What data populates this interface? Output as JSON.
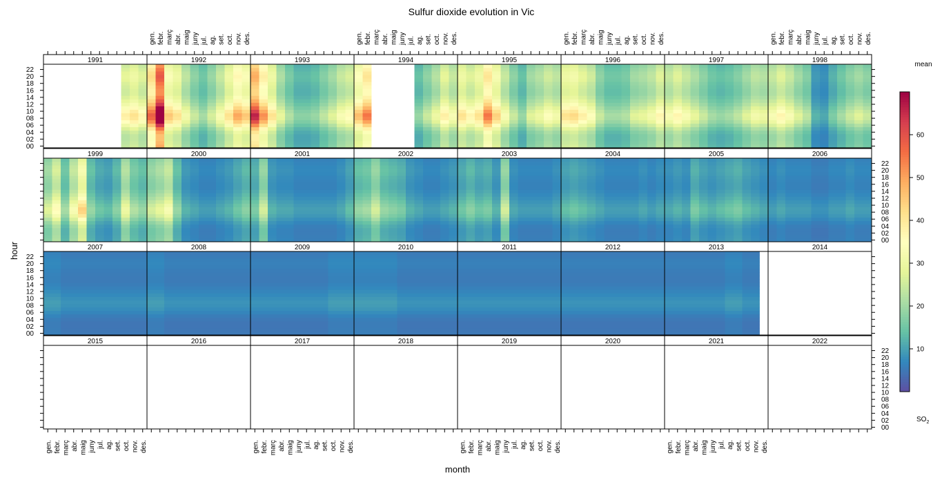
{
  "chart_data": {
    "type": "heatmap",
    "title": "Sulfur dioxide evolution in Vic",
    "xlabel": "month",
    "ylabel": "hour",
    "legend_title": "mean",
    "legend_label_main": "SO",
    "legend_label_sub": "2",
    "colorbar_range": [
      0,
      70
    ],
    "colorbar_ticks": [
      10,
      20,
      30,
      40,
      50,
      60
    ],
    "colormap": [
      "#5E4FA2",
      "#3288BD",
      "#66C2A5",
      "#ABDDA4",
      "#E6F598",
      "#FFFFBF",
      "#FEE08B",
      "#FDAE61",
      "#F46D43",
      "#D53E4F",
      "#9E0142"
    ],
    "months": [
      "gen.",
      "febr.",
      "març",
      "abr.",
      "maig",
      "juny",
      "jul.",
      "ag.",
      "set.",
      "oct.",
      "nov.",
      "des."
    ],
    "hour_ticks": [
      "00",
      "02",
      "04",
      "06",
      "08",
      "10",
      "12",
      "14",
      "16",
      "18",
      "20",
      "22"
    ],
    "panel_rows": [
      [
        "1991",
        "1992",
        "1993",
        "1994",
        "1995",
        "1996",
        "1997",
        "1998"
      ],
      [
        "1999",
        "2000",
        "2001",
        "2002",
        "2003",
        "2004",
        "2005",
        "2006"
      ],
      [
        "2007",
        "2008",
        "2009",
        "2010",
        "2011",
        "2012",
        "2013",
        "2014"
      ],
      [
        "2015",
        "2016",
        "2017",
        "2018",
        "2019",
        "2020",
        "2021",
        "2022"
      ]
    ],
    "monthly_mean": {
      "1991": [
        null,
        null,
        null,
        null,
        null,
        null,
        null,
        null,
        null,
        28,
        30,
        27
      ],
      "1992": [
        42,
        58,
        33,
        30,
        23,
        18,
        15,
        19,
        24,
        30,
        36,
        33
      ],
      "1993": [
        48,
        38,
        30,
        21,
        16,
        13,
        13,
        14,
        17,
        20,
        24,
        26
      ],
      "1994": [
        34,
        40,
        null,
        null,
        null,
        null,
        null,
        14,
        18,
        22,
        28,
        24
      ],
      "1995": [
        30,
        27,
        30,
        40,
        32,
        24,
        18,
        14,
        20,
        22,
        25,
        23
      ],
      "1996": [
        30,
        31,
        28,
        25,
        18,
        15,
        15,
        16,
        20,
        21,
        23,
        27
      ],
      "1997": [
        24,
        27,
        24,
        21,
        18,
        15,
        14,
        15,
        17,
        20,
        23,
        22
      ],
      "1998": [
        24,
        27,
        24,
        20,
        17,
        9,
        8,
        12,
        15,
        18,
        20,
        18
      ],
      "1999": [
        20,
        26,
        15,
        24,
        32,
        14,
        11,
        10,
        13,
        22,
        16,
        14
      ],
      "2000": [
        19,
        21,
        24,
        14,
        9,
        8,
        7,
        7,
        8,
        9,
        11,
        13
      ],
      "2001": [
        12,
        19,
        9,
        8,
        8,
        7,
        7,
        7,
        7,
        7,
        8,
        10
      ],
      "2002": [
        14,
        15,
        19,
        14,
        13,
        12,
        9,
        8,
        7,
        7,
        8,
        9
      ],
      "2003": [
        11,
        13,
        11,
        12,
        9,
        19,
        8,
        7,
        7,
        7,
        7,
        8
      ],
      "2004": [
        10,
        11,
        10,
        9,
        8,
        7,
        7,
        7,
        7,
        8,
        7,
        8
      ],
      "2005": [
        8,
        9,
        8,
        12,
        10,
        9,
        10,
        11,
        12,
        10,
        9,
        8
      ],
      "2006": [
        7,
        8,
        7,
        7,
        7,
        6,
        6,
        7,
        7,
        8,
        7,
        7
      ],
      "2007": [
        7,
        7,
        6,
        6,
        6,
        6,
        6,
        6,
        6,
        6,
        6,
        6
      ],
      "2008": [
        7,
        7,
        6,
        6,
        6,
        6,
        6,
        6,
        6,
        6,
        6,
        6
      ],
      "2009": [
        6,
        6,
        6,
        6,
        6,
        6,
        6,
        6,
        6,
        7,
        7,
        7
      ],
      "2010": [
        7,
        7,
        7,
        7,
        7,
        6,
        6,
        6,
        6,
        6,
        6,
        6
      ],
      "2011": [
        6,
        6,
        6,
        6,
        6,
        6,
        6,
        6,
        6,
        6,
        6,
        6
      ],
      "2012": [
        6,
        6,
        6,
        6,
        6,
        6,
        6,
        6,
        6,
        6,
        6,
        6
      ],
      "2013": [
        6,
        6,
        6,
        6,
        6,
        6,
        6,
        7,
        7,
        6,
        6,
        null
      ],
      "2014": [
        null,
        null,
        null,
        null,
        null,
        null,
        null,
        null,
        null,
        null,
        null,
        null
      ],
      "2015": [
        null,
        null,
        null,
        null,
        null,
        null,
        null,
        null,
        null,
        null,
        null,
        null
      ],
      "2016": [
        null,
        null,
        null,
        null,
        null,
        null,
        null,
        null,
        null,
        null,
        null,
        null
      ],
      "2017": [
        null,
        null,
        null,
        null,
        null,
        null,
        null,
        null,
        null,
        null,
        null,
        null
      ],
      "2018": [
        null,
        null,
        null,
        null,
        null,
        null,
        null,
        null,
        null,
        null,
        null,
        null
      ],
      "2019": [
        null,
        null,
        null,
        null,
        null,
        null,
        null,
        null,
        null,
        null,
        null,
        null
      ],
      "2020": [
        null,
        null,
        null,
        null,
        null,
        null,
        null,
        null,
        null,
        null,
        null,
        null
      ],
      "2021": [
        null,
        null,
        null,
        null,
        null,
        null,
        null,
        null,
        null,
        null,
        null,
        null
      ],
      "2022": [
        null,
        null,
        null,
        null,
        null,
        null,
        null,
        null,
        null,
        null,
        null,
        null
      ]
    },
    "hourly_profile": [
      0.85,
      0.82,
      0.8,
      0.8,
      0.85,
      0.95,
      1.1,
      1.25,
      1.35,
      1.38,
      1.3,
      1.2,
      1.1,
      1.02,
      0.95,
      0.9,
      0.9,
      0.92,
      0.95,
      1.0,
      1.02,
      1.0,
      0.95,
      0.9
    ]
  }
}
